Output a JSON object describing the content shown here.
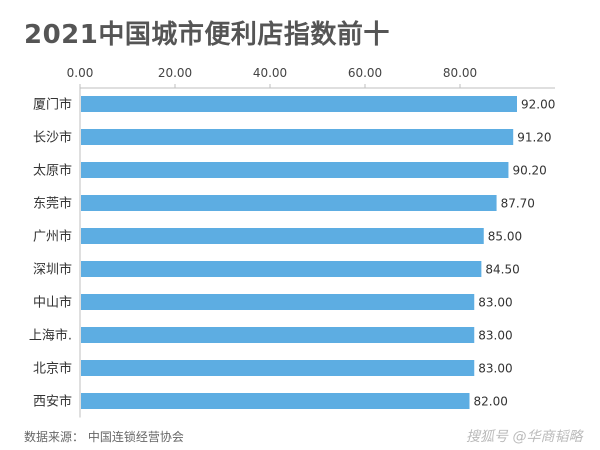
{
  "source_text": "数据来源：  中国连锁经营协会",
  "watermark_text": "搜狐号 @华商韬略",
  "chart_data": {
    "type": "bar",
    "orientation": "horizontal",
    "title": "2021中国城市便利店指数前十",
    "categories": [
      "厦门市",
      "长沙市",
      "太原市",
      "东莞市",
      "广州市",
      "深圳市",
      "中山市",
      "上海市.",
      "北京市",
      "西安市"
    ],
    "values": [
      92.0,
      91.2,
      90.2,
      87.7,
      85.0,
      84.5,
      83.0,
      83.0,
      83.0,
      82.0
    ],
    "value_labels": [
      "92.00",
      "91.20",
      "90.20",
      "87.70",
      "85.00",
      "84.50",
      "83.00",
      "83.00",
      "83.00",
      "82.00"
    ],
    "xticks": [
      "0.00",
      "20.00",
      "40.00",
      "60.00",
      "80.00"
    ],
    "xtick_values": [
      0,
      20,
      40,
      60,
      80
    ],
    "xlim": [
      0,
      100
    ],
    "x_axis_position": "top",
    "grid": false,
    "bar_color": "#5dade2",
    "axis_color": "#bfbfbf"
  }
}
